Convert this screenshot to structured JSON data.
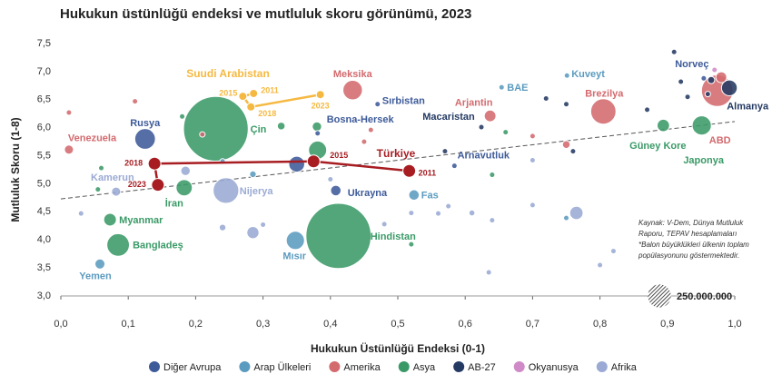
{
  "chart_data": {
    "type": "bubble",
    "title": "Hukukun üstünlüğü endeksi ve mutluluk skoru görünümü, 2023",
    "x_label": "Hukukun Üstünlüğü Endeksi (0-1)",
    "y_label": "Mutluluk Skoru (1-8)",
    "xlim": [
      0,
      1
    ],
    "ylim": [
      3,
      7.5
    ],
    "xticks": [
      {
        "value": 0,
        "label": "0,0"
      },
      {
        "value": 0.1,
        "label": "0,1"
      },
      {
        "value": 0.2,
        "label": "0,2"
      },
      {
        "value": 0.3,
        "label": "0,3"
      },
      {
        "value": 0.4,
        "label": "0,4"
      },
      {
        "value": 0.5,
        "label": "0,5"
      },
      {
        "value": 0.6,
        "label": "0,6"
      },
      {
        "value": 0.7,
        "label": "0,7"
      },
      {
        "value": 0.8,
        "label": "0,8"
      },
      {
        "value": 0.9,
        "label": "0,9"
      },
      {
        "value": 1,
        "label": "1,0"
      }
    ],
    "yticks": [
      {
        "value": 3,
        "label": "3,0"
      },
      {
        "value": 3.5,
        "label": "3,5"
      },
      {
        "value": 4,
        "label": "4,0"
      },
      {
        "value": 4.5,
        "label": "4,5"
      },
      {
        "value": 5,
        "label": "5,0"
      },
      {
        "value": 5.5,
        "label": "5,5"
      },
      {
        "value": 6,
        "label": "6,0"
      },
      {
        "value": 6.5,
        "label": "6,5"
      },
      {
        "value": 7,
        "label": "7,0"
      },
      {
        "value": 7.5,
        "label": "7,5"
      }
    ],
    "series": [
      {
        "name": "Diğer Avrupa",
        "color": "#3d5a99",
        "points": [
          {
            "label": "Rusya",
            "x": 0.125,
            "y": 5.8,
            "size": 144000000
          },
          {
            "label": "Ukrayna",
            "x": 0.408,
            "y": 4.88,
            "size": 37000000
          },
          {
            "label": "Sırbistan",
            "x": 0.47,
            "y": 6.42,
            "size": 7000000
          },
          {
            "label": "Bosna-Hersek",
            "x": 0.381,
            "y": 5.9,
            "size": 3000000
          },
          {
            "label": "Arnavutluk",
            "x": 0.584,
            "y": 5.32,
            "size": 3000000
          },
          {
            "label": "Norveç",
            "x": 0.954,
            "y": 6.88,
            "size": 5000000
          },
          {
            "x": 0.35,
            "y": 5.35,
            "size": 85000000
          }
        ]
      },
      {
        "name": "Arap Ülkeleri",
        "color": "#5b9bbf",
        "points": [
          {
            "label": "Yemen",
            "x": 0.058,
            "y": 3.57,
            "size": 34000000
          },
          {
            "label": "Mısır",
            "x": 0.348,
            "y": 3.99,
            "size": 112000000
          },
          {
            "label": "Fas",
            "x": 0.524,
            "y": 4.8,
            "size": 37000000
          },
          {
            "label": "BAE",
            "x": 0.654,
            "y": 6.72,
            "size": 10000000
          },
          {
            "label": "Kuveyt",
            "x": 0.751,
            "y": 6.93,
            "size": 4000000
          },
          {
            "x": 0.24,
            "y": 5.4,
            "size": 10000000
          },
          {
            "x": 0.285,
            "y": 5.17,
            "size": 15000000
          },
          {
            "x": 0.75,
            "y": 4.39,
            "size": 3000000
          }
        ]
      },
      {
        "name": "Amerika",
        "color": "#d36a6e",
        "points": [
          {
            "label": "Venezuela",
            "x": 0.012,
            "y": 5.61,
            "size": 28000000
          },
          {
            "label": "Meksika",
            "x": 0.433,
            "y": 6.67,
            "size": 128000000
          },
          {
            "label": "Arjantin",
            "x": 0.637,
            "y": 6.21,
            "size": 46000000
          },
          {
            "label": "Brezilya",
            "x": 0.805,
            "y": 6.29,
            "size": 216000000
          },
          {
            "label": "ABD",
            "x": 0.974,
            "y": 6.66,
            "size": 335000000
          },
          {
            "x": 0.012,
            "y": 6.27,
            "size": 3000000
          },
          {
            "x": 0.11,
            "y": 6.47,
            "size": 3000000
          },
          {
            "x": 0.21,
            "y": 5.88,
            "size": 5000000
          },
          {
            "x": 0.45,
            "y": 5.75,
            "size": 5000000
          },
          {
            "x": 0.46,
            "y": 5.96,
            "size": 5000000
          },
          {
            "x": 0.7,
            "y": 5.85,
            "size": 5000000
          },
          {
            "x": 0.75,
            "y": 5.7,
            "size": 20000000
          },
          {
            "x": 0.98,
            "y": 6.9,
            "size": 40000000
          }
        ]
      },
      {
        "name": "Asya",
        "color": "#3a9a67",
        "points": [
          {
            "label": "Myanmar",
            "x": 0.073,
            "y": 4.36,
            "size": 54000000
          },
          {
            "label": "Bangladeş",
            "x": 0.085,
            "y": 3.91,
            "size": 172000000
          },
          {
            "label": "İran",
            "x": 0.183,
            "y": 4.93,
            "size": 89000000
          },
          {
            "label": "Çin",
            "x": 0.23,
            "y": 5.98,
            "size": 1410000000
          },
          {
            "label": "Hindistan",
            "x": 0.412,
            "y": 4.07,
            "size": 1430000000
          },
          {
            "label": "Güney Kore",
            "x": 0.894,
            "y": 6.04,
            "size": 52000000
          },
          {
            "label": "Japonya",
            "x": 0.951,
            "y": 6.04,
            "size": 124000000
          },
          {
            "x": 0.06,
            "y": 5.28,
            "size": 5000000
          },
          {
            "x": 0.055,
            "y": 4.9,
            "size": 3000000
          },
          {
            "x": 0.18,
            "y": 6.2,
            "size": 10000000
          },
          {
            "x": 0.327,
            "y": 6.03,
            "size": 20000000
          },
          {
            "x": 0.381,
            "y": 5.6,
            "size": 110000000
          },
          {
            "x": 0.38,
            "y": 6.02,
            "size": 30000000
          },
          {
            "x": 0.52,
            "y": 3.92,
            "size": 3000000
          },
          {
            "x": 0.64,
            "y": 5.16,
            "size": 3000000
          },
          {
            "x": 0.66,
            "y": 5.92,
            "size": 5000000
          }
        ]
      },
      {
        "name": "AB-27",
        "color": "#243a63",
        "points": [
          {
            "label": "Macaristan",
            "x": 0.624,
            "y": 6.01,
            "size": 10000000
          },
          {
            "label": "Almanya",
            "x": 0.992,
            "y": 6.71,
            "size": 84000000
          },
          {
            "x": 0.87,
            "y": 6.32,
            "size": 10000000
          },
          {
            "x": 0.91,
            "y": 7.35,
            "size": 3000000
          },
          {
            "x": 0.92,
            "y": 6.82,
            "size": 10000000
          },
          {
            "x": 0.93,
            "y": 6.55,
            "size": 10000000
          },
          {
            "x": 0.96,
            "y": 6.6,
            "size": 10000000
          },
          {
            "x": 0.965,
            "y": 6.85,
            "size": 17000000
          },
          {
            "x": 0.75,
            "y": 6.42,
            "size": 5000000
          },
          {
            "x": 0.57,
            "y": 5.58,
            "size": 10000000
          },
          {
            "x": 0.72,
            "y": 6.52,
            "size": 3000000
          },
          {
            "x": 0.76,
            "y": 5.58,
            "size": 3000000
          }
        ]
      },
      {
        "name": "Okyanusya",
        "color": "#d08ac8",
        "points": [
          {
            "x": 0.97,
            "y": 7.03,
            "size": 5000000
          }
        ]
      },
      {
        "name": "Afrika",
        "color": "#9aaad4",
        "points": [
          {
            "label": "Kamerun",
            "x": 0.082,
            "y": 4.86,
            "size": 28000000
          },
          {
            "label": "Nijerya",
            "x": 0.245,
            "y": 4.88,
            "size": 223000000
          },
          {
            "x": 0.03,
            "y": 4.47,
            "size": 3000000
          },
          {
            "x": 0.185,
            "y": 5.23,
            "size": 30000000
          },
          {
            "x": 0.24,
            "y": 4.22,
            "size": 15000000
          },
          {
            "x": 0.285,
            "y": 4.13,
            "size": 50000000
          },
          {
            "x": 0.3,
            "y": 4.27,
            "size": 10000000
          },
          {
            "x": 0.4,
            "y": 5.08,
            "size": 5000000
          },
          {
            "x": 0.48,
            "y": 4.28,
            "size": 10000000
          },
          {
            "x": 0.52,
            "y": 4.48,
            "size": 5000000
          },
          {
            "x": 0.56,
            "y": 4.47,
            "size": 5000000
          },
          {
            "x": 0.575,
            "y": 4.6,
            "size": 5000000
          },
          {
            "x": 0.61,
            "y": 4.48,
            "size": 12000000
          },
          {
            "x": 0.64,
            "y": 4.35,
            "size": 5000000
          },
          {
            "x": 0.635,
            "y": 3.42,
            "size": 3000000
          },
          {
            "x": 0.7,
            "y": 5.42,
            "size": 10000000
          },
          {
            "x": 0.7,
            "y": 4.62,
            "size": 5000000
          },
          {
            "x": 0.765,
            "y": 4.48,
            "size": 60000000
          },
          {
            "x": 0.8,
            "y": 3.55,
            "size": 3000000
          },
          {
            "x": 0.82,
            "y": 3.8,
            "size": 10000000
          }
        ]
      }
    ],
    "trend": {
      "x": [
        0,
        1
      ],
      "y": [
        4.73,
        6.11
      ]
    },
    "trajectories": [
      {
        "name": "Suudi Arabistan",
        "color": "#f5b942",
        "points": [
          {
            "year": "2011",
            "x": 0.286,
            "y": 6.61
          },
          {
            "year": "2015",
            "x": 0.27,
            "y": 6.56
          },
          {
            "year": "2018",
            "x": 0.282,
            "y": 6.37
          },
          {
            "year": "2023",
            "x": 0.385,
            "y": 6.59
          }
        ]
      },
      {
        "name": "Türkiye",
        "color": "#a71d22",
        "points": [
          {
            "year": "2011",
            "x": 0.517,
            "y": 5.23
          },
          {
            "year": "2015",
            "x": 0.375,
            "y": 5.4
          },
          {
            "year": "2018",
            "x": 0.139,
            "y": 5.36
          },
          {
            "year": "2023",
            "x": 0.144,
            "y": 4.98
          }
        ]
      }
    ],
    "size_legend": {
      "value": 250000000,
      "label": "250.000.000"
    },
    "note": [
      "Kaynak: V-Dem, Dünya Mutluluk",
      "Raporu, TEPAV hesaplamaları",
      "*Balon büyüklükleri ülkenin toplam",
      "popülasyonunu göstermektedir."
    ]
  }
}
